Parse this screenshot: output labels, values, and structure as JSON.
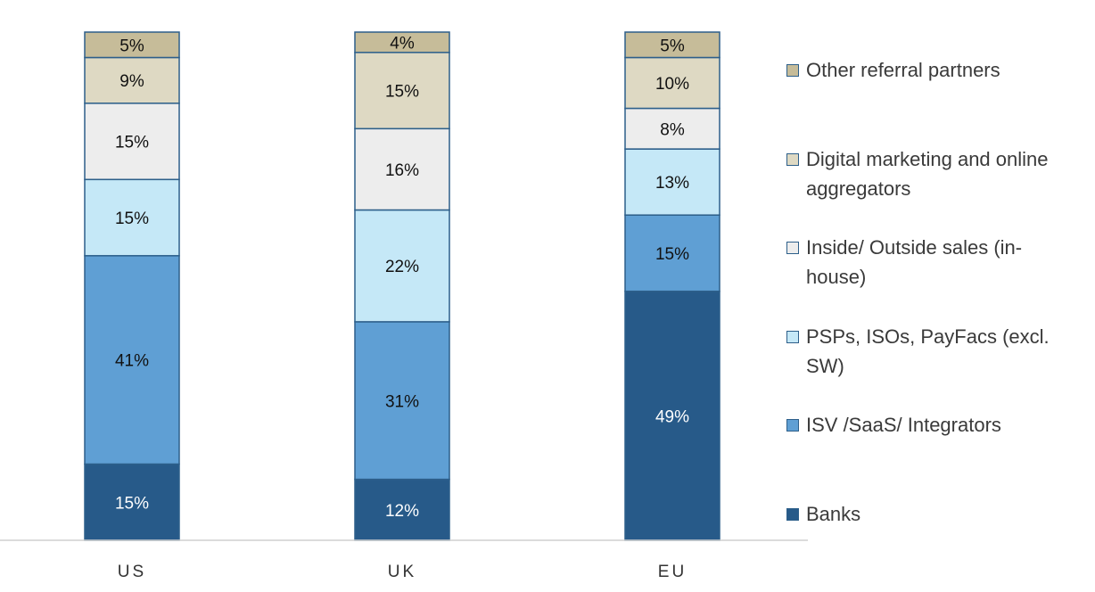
{
  "chart_data": {
    "type": "bar",
    "stacked": true,
    "orientation": "vertical",
    "normalized_percent": true,
    "categories": [
      "US",
      "UK",
      "EU"
    ],
    "series": [
      {
        "name": "Banks",
        "color": "#275a89",
        "label_color": "#ffffff",
        "values": [
          15,
          12,
          49
        ]
      },
      {
        "name": "ISV /SaaS/ Integrators",
        "color": "#5f9fd4",
        "label_color": "#111111",
        "values": [
          41,
          31,
          15
        ]
      },
      {
        "name": "PSPs, ISOs, PayFacs (excl. SW)",
        "color": "#c5e8f7",
        "label_color": "#111111",
        "values": [
          15,
          22,
          13
        ]
      },
      {
        "name": "Inside/ Outside sales (in-house)",
        "color": "#ededed",
        "label_color": "#111111",
        "values": [
          15,
          16,
          8
        ]
      },
      {
        "name": "Digital marketing and online aggregators",
        "color": "#ded9c3",
        "label_color": "#111111",
        "values": [
          9,
          15,
          10
        ]
      },
      {
        "name": "Other referral partners",
        "color": "#c6bc99",
        "label_color": "#111111",
        "values": [
          5,
          4,
          5
        ]
      }
    ],
    "data_label_suffix": "%",
    "legend_position": "right",
    "legend_order": "reverse",
    "grid": false,
    "title": "",
    "xlabel": "",
    "ylabel": "",
    "ylim": [
      0,
      100
    ]
  },
  "legend": {
    "items": [
      {
        "label_line1": "Other referral partners",
        "label_line2": "",
        "color": "#c6bc99"
      },
      {
        "label_line1": "Digital marketing and online",
        "label_line2": "aggregators",
        "color": "#ded9c3"
      },
      {
        "label_line1": "Inside/ Outside sales (in-",
        "label_line2": "house)",
        "color": "#ededed"
      },
      {
        "label_line1": "PSPs, ISOs, PayFacs (excl.",
        "label_line2": "SW)",
        "color": "#c5e8f7"
      },
      {
        "label_line1": "ISV /SaaS/ Integrators",
        "label_line2": "",
        "color": "#5f9fd4"
      },
      {
        "label_line1": "Banks",
        "label_line2": "",
        "color": "#275a89"
      }
    ]
  }
}
